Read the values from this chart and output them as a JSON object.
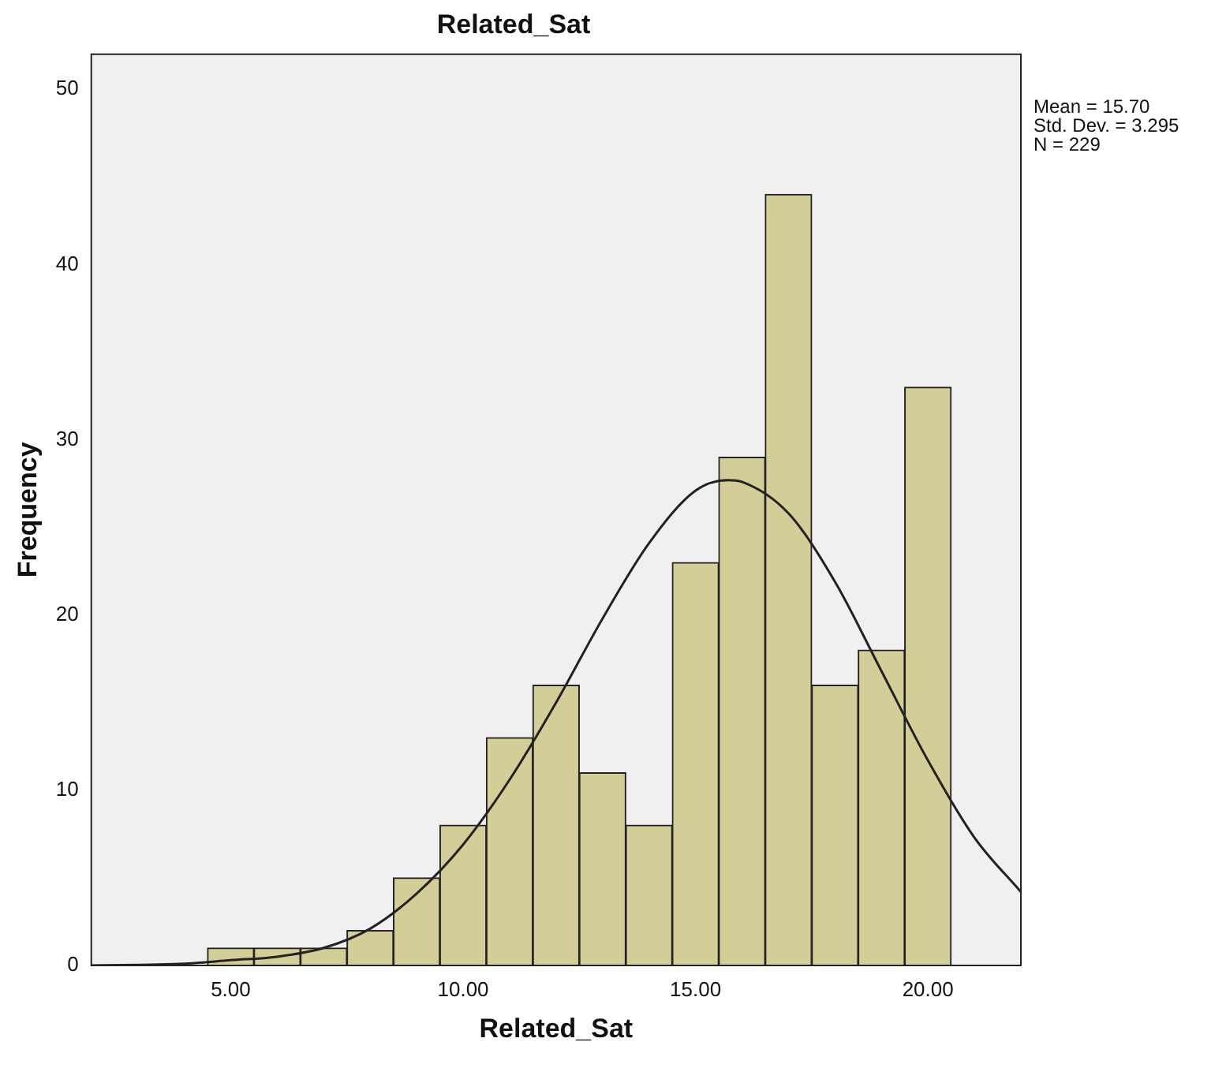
{
  "chart_data": {
    "type": "histogram",
    "title": "Related_Sat",
    "xlabel": "Related_Sat",
    "ylabel": "Frequency",
    "bins": [
      4.5,
      5.5,
      6.5,
      7.5,
      8.5,
      9.5,
      10.5,
      11.5,
      12.5,
      13.5,
      14.5,
      15.5,
      16.5,
      17.5,
      18.5,
      19.5,
      20.5
    ],
    "values": [
      1,
      1,
      1,
      2,
      5,
      8,
      13,
      16,
      11,
      8,
      23,
      29,
      44,
      16,
      18,
      33
    ],
    "color": "#d3ce97",
    "series": [
      {
        "type": "line",
        "color": "#222222",
        "x": [
          2,
          4,
          5,
          6,
          7,
          8,
          9,
          10,
          11,
          12,
          13,
          14,
          15,
          15.7,
          16,
          17,
          18,
          19,
          20,
          21,
          22
        ],
        "values": [
          0,
          0.1,
          0.3,
          0.5,
          1,
          2.1,
          4.1,
          6.9,
          10.6,
          15,
          19.8,
          24.1,
          27.1,
          27.7,
          27.6,
          25.8,
          21.9,
          16.8,
          11.7,
          7.3,
          4.2
        ]
      }
    ],
    "xlim": [
      2,
      22
    ],
    "xticks": [
      {
        "value": 5,
        "label": "5.00"
      },
      {
        "value": 10,
        "label": "10.00"
      },
      {
        "value": 15,
        "label": "15.00"
      },
      {
        "value": 20,
        "label": "20.00"
      }
    ],
    "ylim": [
      0,
      52
    ],
    "yticks": [
      0,
      10,
      20,
      30,
      40,
      50
    ],
    "annotations": [
      "Mean = 15.70",
      "Std. Dev. = 3.295",
      "N = 229"
    ]
  }
}
